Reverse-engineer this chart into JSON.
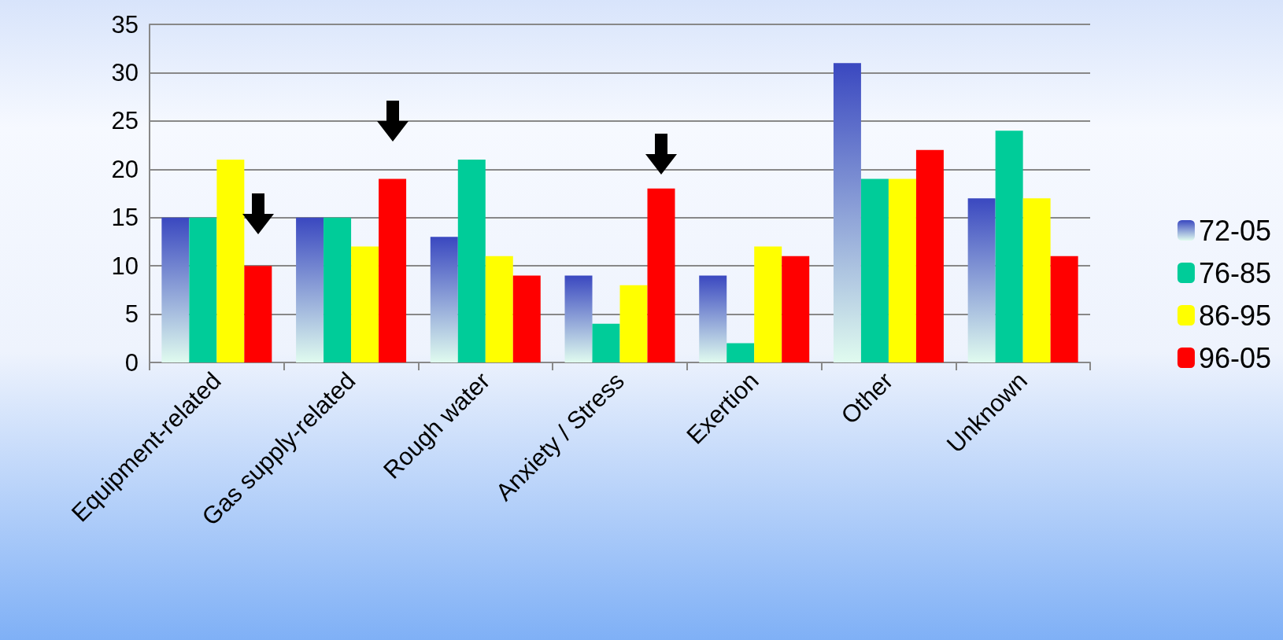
{
  "chart_data": {
    "type": "bar",
    "categories": [
      "Equipment-related",
      "Gas supply-related",
      "Rough water",
      "Anxiety / Stress",
      "Exertion",
      "Other",
      "Unknown"
    ],
    "series": [
      {
        "name": "72-05",
        "color": "#3a48c0",
        "values": [
          15,
          15,
          13,
          9,
          9,
          31,
          17
        ]
      },
      {
        "name": "76-85",
        "color": "#00cc99",
        "values": [
          15,
          15,
          21,
          4,
          2,
          19,
          24
        ]
      },
      {
        "name": "86-95",
        "color": "#ffff00",
        "values": [
          21,
          12,
          11,
          8,
          12,
          19,
          17
        ]
      },
      {
        "name": "96-05",
        "color": "#ff0000",
        "values": [
          10,
          19,
          9,
          18,
          11,
          22,
          11
        ]
      }
    ],
    "ylim": [
      0,
      35
    ],
    "yticks": [
      0,
      5,
      10,
      15,
      20,
      25,
      30,
      35
    ],
    "grid": "y",
    "legend": "right"
  }
}
